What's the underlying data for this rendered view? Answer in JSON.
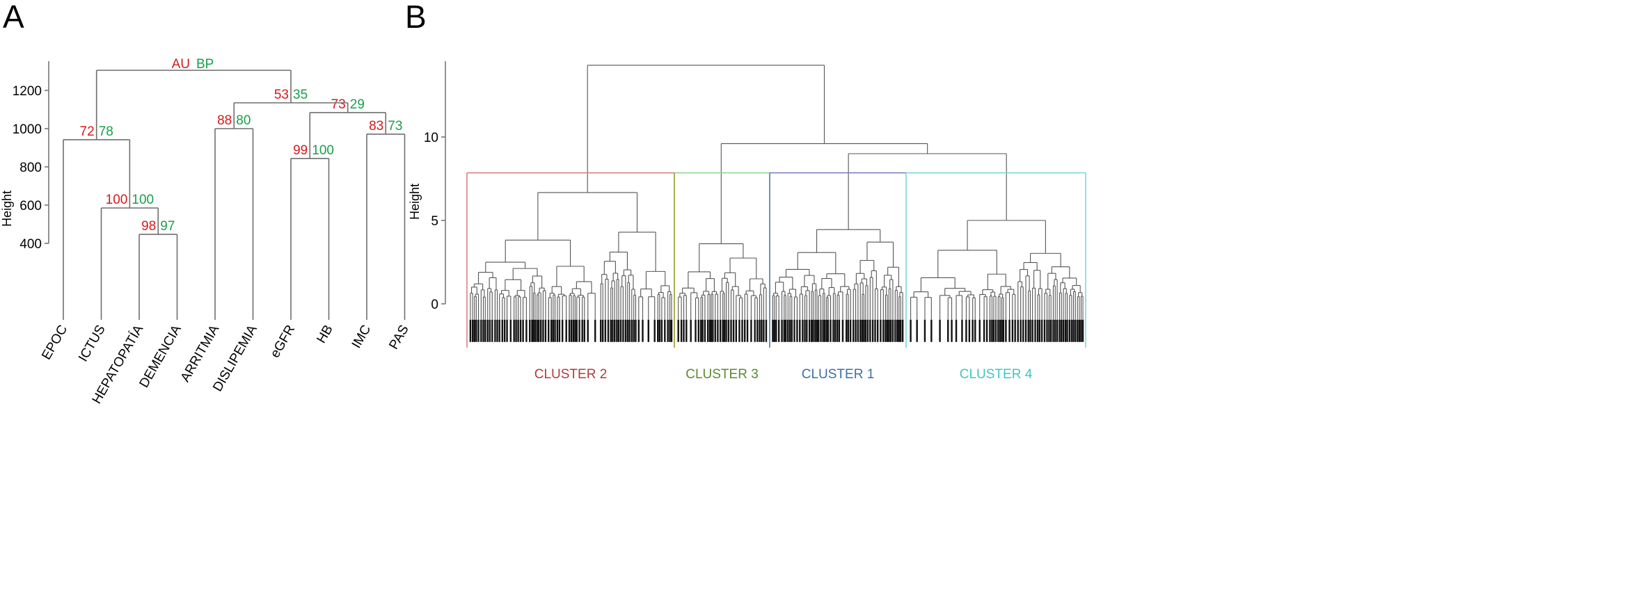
{
  "panels": {
    "a_label": "A",
    "b_label": "B"
  },
  "chart_data": [
    {
      "type": "dendrogram",
      "panel": "A",
      "ylabel": "Height",
      "yticks": [
        400,
        600,
        800,
        1000,
        1200
      ],
      "ylim": [
        0,
        1360
      ],
      "header": {
        "au": "AU",
        "bp": "BP"
      },
      "colors": {
        "au": "#d7191c",
        "bp": "#16a04a",
        "branch": "#6e6e6e"
      },
      "leaves": [
        "EPOC",
        "ICTUS",
        "HEPATOPATÍA",
        "DEMENCIA",
        "ARRITMIA",
        "DISLIPEMIA",
        "eGFR",
        "HB",
        "IMC",
        "PAS"
      ],
      "merges": [
        {
          "left": "L2",
          "right": "L3",
          "height": 447,
          "au": "98",
          "bp": "97"
        },
        {
          "left": "L1",
          "right": "M0",
          "height": 585,
          "au": "100",
          "bp": "100"
        },
        {
          "left": "L0",
          "right": "M1",
          "height": 942,
          "au": "72",
          "bp": "78"
        },
        {
          "left": "L4",
          "right": "L5",
          "height": 1000,
          "au": "88",
          "bp": "80"
        },
        {
          "left": "L6",
          "right": "L7",
          "height": 844,
          "au": "99",
          "bp": "100"
        },
        {
          "left": "L8",
          "right": "L9",
          "height": 971,
          "au": "83",
          "bp": "73"
        },
        {
          "left": "M4",
          "right": "M5",
          "height": 1084,
          "au": "73",
          "bp": "29"
        },
        {
          "left": "M3",
          "right": "M6",
          "height": 1135,
          "au": "53",
          "bp": "35"
        },
        {
          "left": "M2",
          "right": "M7",
          "height": 1305,
          "au": "",
          "bp": ""
        }
      ]
    },
    {
      "type": "dendrogram",
      "panel": "B",
      "ylabel": "Height",
      "yticks": [
        0,
        5,
        10
      ],
      "ylim": [
        -2,
        14.8
      ],
      "cut_height": 7.85,
      "root_height": 14.3,
      "clusters": [
        {
          "label": "CLUSTER 2",
          "height": 6.67,
          "color": "#d98080",
          "text_color": "#b23b3b",
          "side_color": "#d98080"
        },
        {
          "label": "CLUSTER 3",
          "height": 3.6,
          "color": "#8fd88f",
          "text_color": "#5b8a2c",
          "side_color": "#9a9a20"
        },
        {
          "label": "CLUSTER 1",
          "height": 4.45,
          "color": "#8080c0",
          "text_color": "#3d6fa8",
          "side_color": "#3d7fa8"
        },
        {
          "label": "CLUSTER 4",
          "height": 5.0,
          "color": "#7ad8d8",
          "text_color": "#3fc6c0",
          "side_color": "#7ad8d8"
        }
      ],
      "upper_merges": [
        {
          "children": [
            "CLUSTER 1",
            "CLUSTER 4"
          ],
          "height": 9.0
        },
        {
          "children": [
            "CLUSTER 3",
            "CLUSTER 1 + CLUSTER 4"
          ],
          "height": 9.6
        },
        {
          "children": [
            "CLUSTER 2",
            "rest"
          ],
          "height": 14.3
        }
      ]
    }
  ]
}
